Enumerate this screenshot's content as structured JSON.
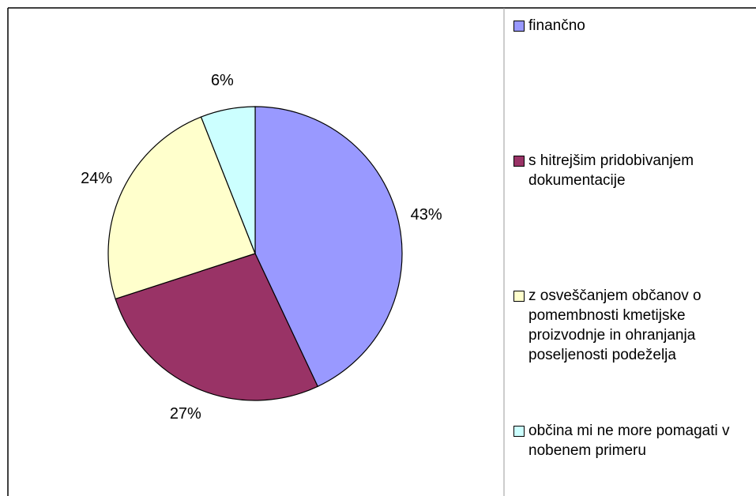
{
  "chart_data": {
    "type": "pie",
    "categories": [
      "finančno",
      "s hitrejšim pridobivanjem dokumentacije",
      "z osveščanjem občanov o pomembnosti kmetijske proizvodnje in ohranjanja poseljenosti podeželja",
      "občina mi ne more pomagati v nobenem primeru"
    ],
    "values": [
      43,
      27,
      24,
      6
    ],
    "value_labels": [
      "43%",
      "27%",
      "24%",
      "6%"
    ],
    "colors": [
      "#9999ff",
      "#993366",
      "#ffffcc",
      "#ccffff"
    ],
    "legend": "right"
  }
}
